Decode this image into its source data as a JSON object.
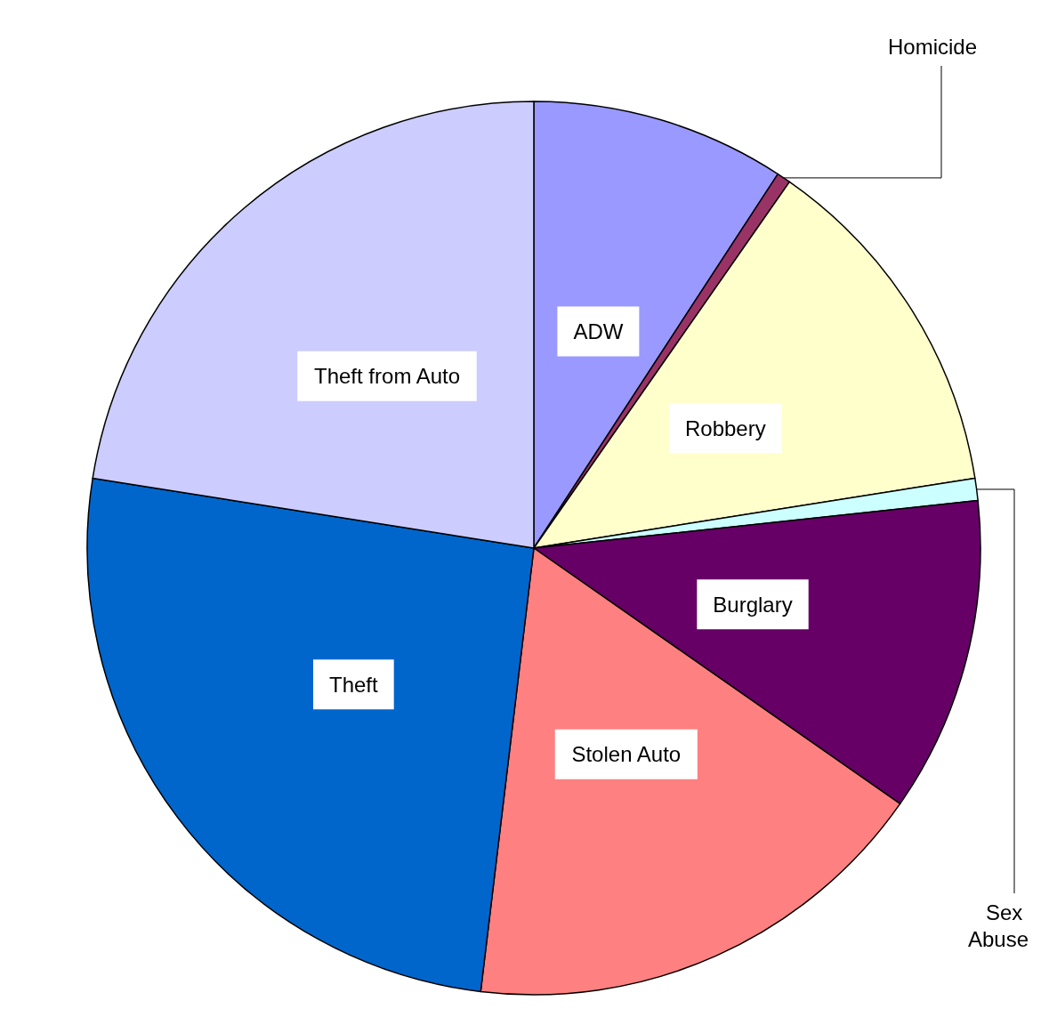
{
  "chart_data": {
    "type": "pie",
    "categories": [
      "ADW",
      "Homicide",
      "Robbery",
      "Sex Abuse",
      "Burglary",
      "Stolen Auto",
      "Theft",
      "Theft from Auto"
    ],
    "values": [
      9.2,
      0.5,
      12.8,
      0.8,
      11.4,
      17.2,
      25.6,
      22.5
    ],
    "colors": [
      "#9999ff",
      "#993366",
      "#ffffcc",
      "#ccffff",
      "#660066",
      "#ff8080",
      "#0066cc",
      "#ccccff"
    ],
    "legend": false
  }
}
